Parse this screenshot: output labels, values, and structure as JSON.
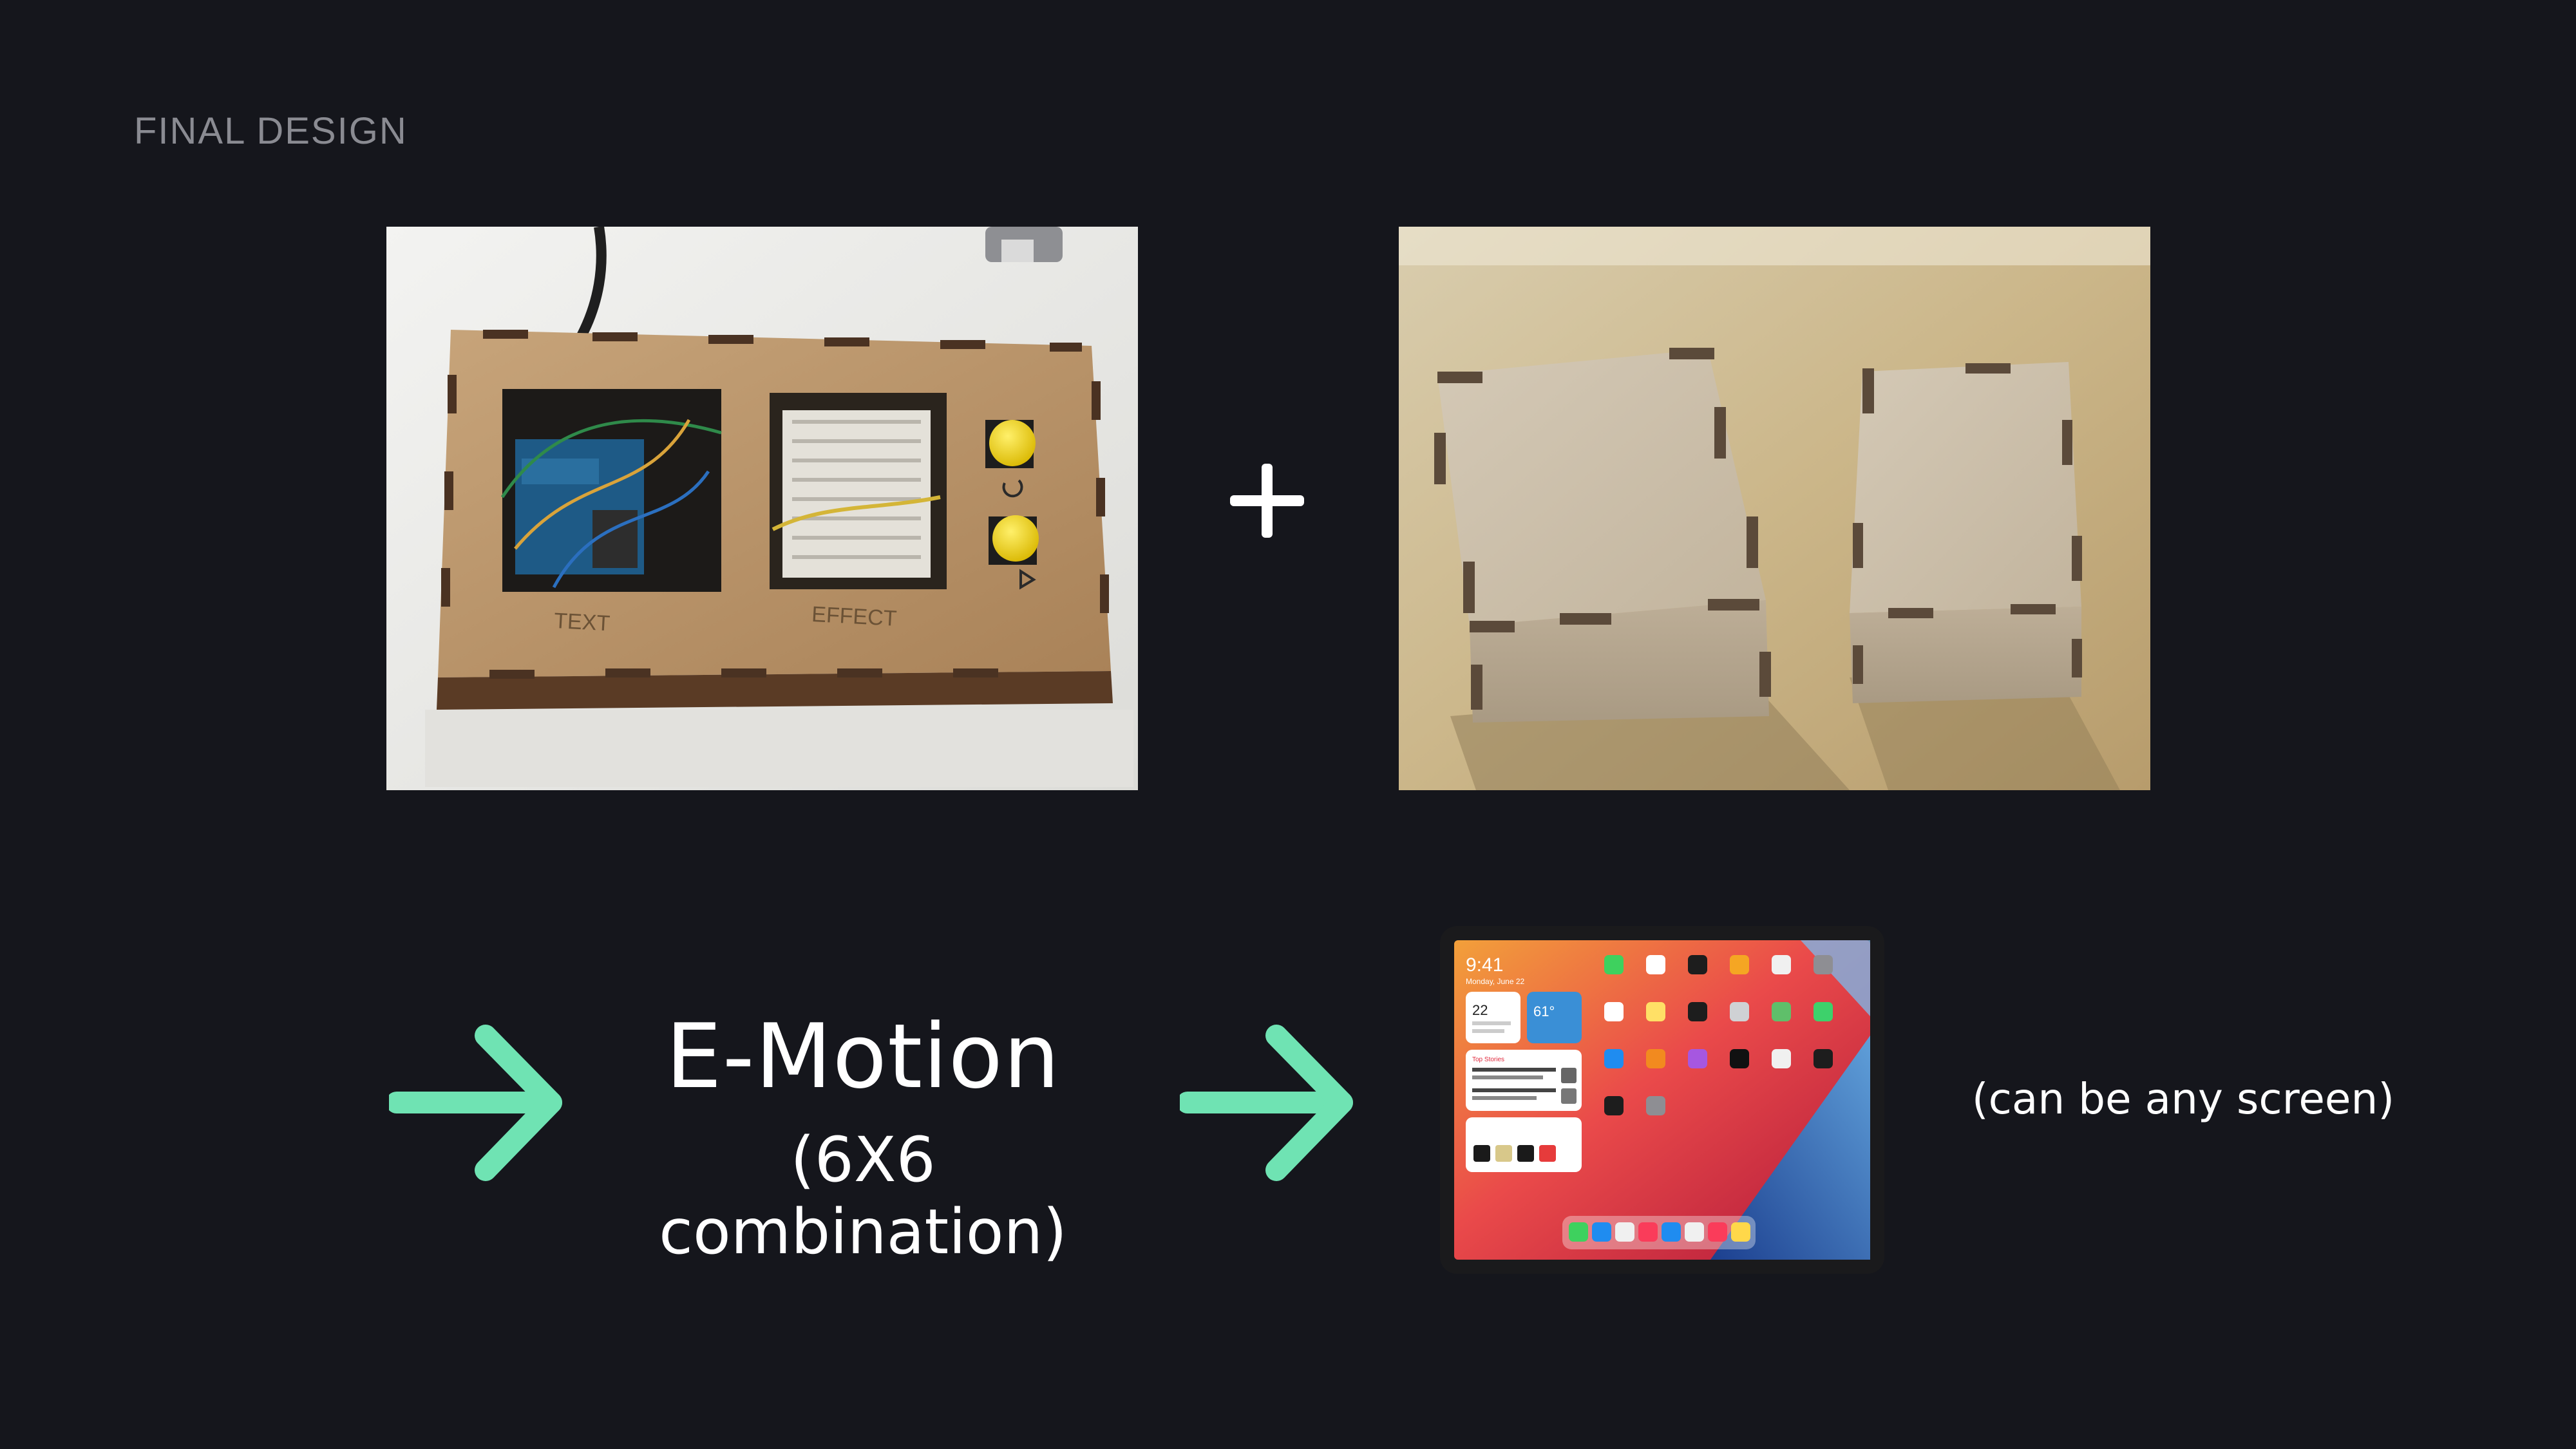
{
  "slide": {
    "section_label": "FINAL DESIGN",
    "product_name": "E-Motion",
    "product_sub": "(6X6 combination)",
    "caption": "(can be any screen)"
  },
  "photos": {
    "box_labels": [
      "TEXT",
      "EFFECT"
    ]
  },
  "tablet": {
    "time": "9:41",
    "date": "Monday, June 22",
    "calendar_day": "22",
    "weather_temp": "61°",
    "news_header": "Top Stories"
  },
  "colors": {
    "background": "#15161c",
    "accent_arrow": "#6fe3b3",
    "label_gray": "#8a8b92",
    "text": "#ffffff"
  },
  "icons": [
    "plus-icon",
    "arrow-right-icon",
    "arrow-right-icon"
  ]
}
